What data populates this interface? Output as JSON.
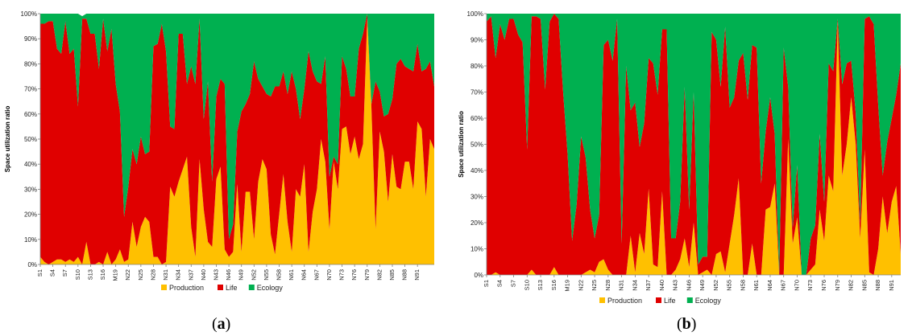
{
  "chart_data": [
    {
      "type": "area",
      "stacked": true,
      "caption_letter": "a",
      "ylabel": "Space utilization ratio",
      "ylim": [
        0,
        1
      ],
      "y_ticks": [
        "0%",
        "10%",
        "20%",
        "30%",
        "40%",
        "50%",
        "60%",
        "70%",
        "80%",
        "90%",
        "100%"
      ],
      "x_tick_labels": [
        "S1",
        "S4",
        "S7",
        "S10",
        "S13",
        "S16",
        "M19",
        "N22",
        "N25",
        "N28",
        "N31",
        "N34",
        "N37",
        "N40",
        "N43",
        "N46",
        "N49",
        "N52",
        "N55",
        "N58",
        "N61",
        "N64",
        "N67",
        "N70",
        "N73",
        "N76",
        "N79",
        "N82",
        "N85",
        "N88",
        "N91"
      ],
      "legend": [
        {
          "name": "Production",
          "color": "#ffc000"
        },
        {
          "name": "Life",
          "color": "#e00000"
        },
        {
          "name": "Ecology",
          "color": "#00b050"
        }
      ],
      "grid": false,
      "legend_position": "bottom",
      "series": [
        {
          "name": "Production",
          "color": "#ffc000",
          "values": [
            0.03,
            0.01,
            0,
            0.01,
            0.02,
            0.02,
            0.01,
            0.02,
            0.01,
            0.03,
            0,
            0.09,
            0,
            0,
            0.01,
            0,
            0.05,
            0,
            0.02,
            0.06,
            0.01,
            0.02,
            0.17,
            0.07,
            0.15,
            0.19,
            0.17,
            0.03,
            0.03,
            0,
            0.01,
            0.31,
            0.27,
            0.33,
            0.38,
            0.43,
            0.15,
            0.03,
            0.42,
            0.22,
            0.09,
            0.07,
            0.34,
            0.39,
            0.06,
            0.03,
            0.05,
            0.32,
            0.05,
            0.29,
            0.29,
            0.1,
            0.33,
            0.42,
            0.38,
            0.12,
            0.04,
            0.2,
            0.36,
            0.17,
            0.05,
            0.3,
            0.27,
            0.4,
            0.05,
            0.21,
            0.3,
            0.5,
            0.41,
            0.14,
            0.41,
            0.3,
            0.54,
            0.55,
            0.44,
            0.51,
            0.42,
            0.48,
            0.98,
            0.63,
            0.14,
            0.53,
            0.45,
            0.25,
            0.44,
            0.31,
            0.3,
            0.41,
            0.41,
            0.3,
            0.57,
            0.54,
            0.27,
            0.5,
            0.46
          ]
        },
        {
          "name": "Life",
          "color": "#e00000",
          "values": [
            0.93,
            0.95,
            0.97,
            0.96,
            0.84,
            0.82,
            0.96,
            0.82,
            0.85,
            0.6,
            0.98,
            0.89,
            0.92,
            0.92,
            0.77,
            0.98,
            0.8,
            0.94,
            0.7,
            0.55,
            0.18,
            0.29,
            0.29,
            0.33,
            0.36,
            0.25,
            0.28,
            0.84,
            0.85,
            0.96,
            0.84,
            0.24,
            0.27,
            0.59,
            0.54,
            0.29,
            0.64,
            0.69,
            0.56,
            0.36,
            0.64,
            0.26,
            0.33,
            0.35,
            0.66,
            0.07,
            0.11,
            0.21,
            0.56,
            0.35,
            0.39,
            0.71,
            0.41,
            0.29,
            0.3,
            0.55,
            0.67,
            0.51,
            0.41,
            0.51,
            0.72,
            0.4,
            0.31,
            0.3,
            0.8,
            0.56,
            0.43,
            0.22,
            0.42,
            0.21,
            0.02,
            0.1,
            0.29,
            0.23,
            0.23,
            0.16,
            0.44,
            0.44,
            0.02,
            0.01,
            0.59,
            0.16,
            0.14,
            0.35,
            0.22,
            0.49,
            0.52,
            0.38,
            0.37,
            0.47,
            0.31,
            0.23,
            0.51,
            0.31,
            0.25
          ]
        },
        {
          "name": "Ecology",
          "color": "#00b050",
          "values": [
            0.04,
            0.04,
            0.03,
            0.03,
            0.14,
            0.16,
            0.03,
            0.16,
            0.14,
            0.37,
            0.01,
            0.02,
            0.08,
            0.08,
            0.22,
            0.02,
            0.15,
            0.06,
            0.28,
            0.39,
            0.81,
            0.69,
            0.54,
            0.6,
            0.49,
            0.56,
            0.55,
            0.13,
            0.12,
            0.04,
            0.15,
            0.45,
            0.46,
            0.08,
            0.08,
            0.28,
            0.21,
            0.28,
            0.02,
            0.42,
            0.27,
            0.67,
            0.33,
            0.26,
            0.28,
            0.9,
            0.84,
            0.47,
            0.39,
            0.36,
            0.32,
            0.19,
            0.26,
            0.29,
            0.32,
            0.33,
            0.29,
            0.29,
            0.23,
            0.32,
            0.23,
            0.3,
            0.42,
            0.3,
            0.15,
            0.23,
            0.27,
            0.28,
            0.17,
            0.65,
            0.57,
            0.6,
            0.17,
            0.22,
            0.33,
            0.33,
            0.14,
            0.08,
            0,
            0.36,
            0.27,
            0.31,
            0.41,
            0.4,
            0.34,
            0.2,
            0.18,
            0.21,
            0.22,
            0.23,
            0.12,
            0.23,
            0.22,
            0.19,
            0.29
          ]
        }
      ]
    },
    {
      "type": "area",
      "stacked": true,
      "caption_letter": "b",
      "ylabel": "Space utilization ratio",
      "ylim": [
        0,
        1
      ],
      "y_ticks": [
        "0%",
        "10%",
        "20%",
        "30%",
        "40%",
        "50%",
        "60%",
        "70%",
        "80%",
        "90%",
        "100%"
      ],
      "x_tick_labels": [
        "S1",
        "S4",
        "S7",
        "S10",
        "S13",
        "S16",
        "M19",
        "N22",
        "N25",
        "N28",
        "N31",
        "N34",
        "N37",
        "N40",
        "N43",
        "N46",
        "N49",
        "N52",
        "N55",
        "N58",
        "N61",
        "N64",
        "N67",
        "N70",
        "N73",
        "N76",
        "N79",
        "N82",
        "N85",
        "N88",
        "N91"
      ],
      "legend": [
        {
          "name": "Production",
          "color": "#ffc000"
        },
        {
          "name": "Life",
          "color": "#e00000"
        },
        {
          "name": "Ecology",
          "color": "#00b050"
        }
      ],
      "grid": false,
      "legend_position": "bottom",
      "series": [
        {
          "name": "Production",
          "color": "#ffc000",
          "values": [
            0,
            0,
            0.01,
            0,
            0,
            0,
            0,
            0,
            0,
            0,
            0.02,
            0,
            0,
            0,
            0,
            0.03,
            0,
            0,
            0,
            0,
            0,
            0,
            0.01,
            0.02,
            0.01,
            0.05,
            0.06,
            0.02,
            0,
            0,
            0,
            0,
            0.15,
            0.01,
            0.16,
            0.08,
            0.33,
            0.04,
            0.03,
            0.32,
            0,
            0,
            0.02,
            0.06,
            0.14,
            0.03,
            0.2,
            0,
            0.01,
            0.02,
            0,
            0.08,
            0.09,
            0.01,
            0.12,
            0.23,
            0.37,
            0,
            0,
            0.12,
            0,
            0,
            0.25,
            0.26,
            0.35,
            0,
            0,
            0.52,
            0.12,
            0.22,
            0,
            0,
            0.02,
            0.04,
            0.25,
            0.13,
            0.38,
            0.32,
            0.97,
            0.38,
            0.5,
            0.68,
            0.5,
            0.14,
            0.48,
            0.01,
            0,
            0.1,
            0.3,
            0.16,
            0.28,
            0.34,
            0.08
          ]
        },
        {
          "name": "Life",
          "color": "#e00000",
          "values": [
            0.97,
            0.99,
            0.82,
            0.96,
            0.9,
            0.98,
            0.98,
            0.92,
            0.89,
            0.48,
            0.97,
            0.99,
            0.98,
            0.71,
            0.97,
            0.97,
            0.98,
            0.7,
            0.46,
            0.13,
            0.27,
            0.53,
            0.44,
            0.23,
            0.13,
            0.18,
            0.82,
            0.88,
            0.82,
            0.98,
            0.12,
            0.8,
            0.48,
            0.65,
            0.33,
            0.5,
            0.5,
            0.77,
            0.66,
            0.62,
            0.94,
            0.14,
            0.12,
            0.22,
            0.58,
            0.22,
            0.5,
            0.04,
            0.06,
            0.05,
            0.93,
            0.82,
            0.63,
            0.94,
            0.52,
            0.45,
            0.45,
            0.85,
            0.67,
            0.76,
            0.87,
            0.35,
            0.3,
            0.42,
            0.19,
            0,
            0.87,
            0.2,
            0.06,
            0.2,
            0,
            0,
            0.12,
            0.15,
            0.29,
            0.15,
            0.43,
            0.46,
            0.01,
            0.35,
            0.31,
            0.14,
            0.12,
            0.06,
            0.5,
            0.98,
            0.96,
            0.55,
            0.08,
            0.35,
            0.32,
            0.35,
            0.73
          ]
        },
        {
          "name": "Ecology",
          "color": "#00b050",
          "values": [
            0.03,
            0.01,
            0.17,
            0.04,
            0.1,
            0.02,
            0.02,
            0.08,
            0.11,
            0.52,
            0.01,
            0.01,
            0.02,
            0.29,
            0.03,
            0,
            0.02,
            0.3,
            0.54,
            0.87,
            0.73,
            0.47,
            0.55,
            0.75,
            0.86,
            0.77,
            0.12,
            0.1,
            0.18,
            0.02,
            0.88,
            0.2,
            0.37,
            0.34,
            0.51,
            0.42,
            0.17,
            0.19,
            0.31,
            0.06,
            0.06,
            0.86,
            0.86,
            0.72,
            0.28,
            0.75,
            0.3,
            0.96,
            0.93,
            0.93,
            0.07,
            0.1,
            0.28,
            0.05,
            0.36,
            0.32,
            0.18,
            0.15,
            0.33,
            0.12,
            0.13,
            0.65,
            0.45,
            0.32,
            0.46,
            1,
            0.13,
            0.28,
            0.82,
            0.58,
            1,
            1,
            0.86,
            0.81,
            0.46,
            0.72,
            0.19,
            0.22,
            0.02,
            0.27,
            0.19,
            0.18,
            0.38,
            0.8,
            0.02,
            0.01,
            0.04,
            0.35,
            0.62,
            0.49,
            0.4,
            0.31,
            0.19
          ]
        }
      ]
    }
  ]
}
